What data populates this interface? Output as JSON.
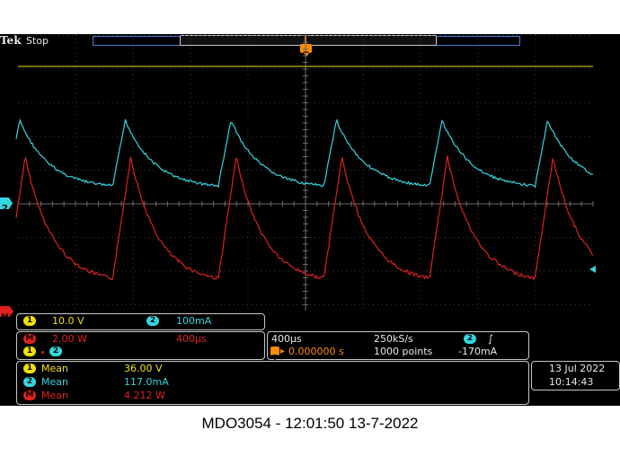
{
  "header": {
    "brand": "Tek",
    "status": "Stop"
  },
  "markers": {
    "trigger_top": "T",
    "trigger_pos": "T",
    "ch2_marker": "2",
    "math_marker": "M"
  },
  "colors": {
    "ch1": "#f0e000",
    "ch2": "#33d6e0",
    "math": "#e02020",
    "grid": "#4a4a4a",
    "accent_orange": "#ff8c00"
  },
  "channels": {
    "row1": [
      {
        "badge": "1",
        "scale": "10.0 V"
      },
      {
        "badge": "2",
        "scale": "100mA"
      }
    ],
    "math": {
      "badge": "M",
      "scale": "2.00 W",
      "time": "400µs"
    },
    "math_sources": {
      "a": "1",
      "b": "2"
    }
  },
  "horizontal": {
    "time_div": "400µs",
    "sample_rate": "250kS/s",
    "trigger_symbol": "T",
    "trigger_delay": "0.000000 s",
    "record_length": "1000 points",
    "trigger_channel": "2",
    "trigger_slope": "∫",
    "trigger_level": "-170mA"
  },
  "measurements": [
    {
      "badge": "1",
      "label": "Mean",
      "value": "36.00 V"
    },
    {
      "badge": "2",
      "label": "Mean",
      "value": "117.0mA"
    },
    {
      "badge": "M",
      "label": "Mean",
      "value": "4.212 W"
    }
  ],
  "datetime": {
    "date": "13 Jul  2022",
    "time": "10:14:43"
  },
  "caption": "MDO3054 - 12:01:50   13-7-2022"
}
